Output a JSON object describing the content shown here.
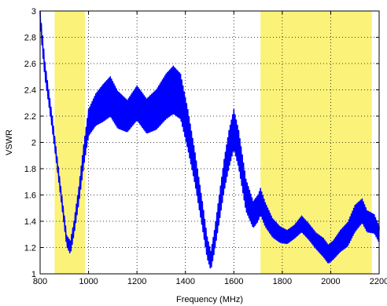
{
  "chart_data": {
    "type": "line",
    "title": "",
    "xlabel": "Frequency (MHz)",
    "ylabel": "VSWR",
    "xlim": [
      800,
      2200
    ],
    "ylim": [
      1,
      3
    ],
    "xticks": [
      "800",
      "1000",
      "1200",
      "1400",
      "1600",
      "1800",
      "2000",
      "2200"
    ],
    "yticks": [
      "1",
      "1.2",
      "1.4",
      "1.6",
      "1.8",
      "2",
      "2.2",
      "2.4",
      "2.6",
      "2.8",
      "3"
    ],
    "grid": true,
    "legend": "none",
    "highlight_bands": [
      {
        "x_range": [
          860,
          985
        ],
        "color": "#fbf27a"
      },
      {
        "x_range": [
          1710,
          2170
        ],
        "color": "#fbf27a"
      }
    ],
    "series": [
      {
        "color": "#0000ff",
        "x": [
          800,
          810,
          820,
          835,
          850,
          870,
          890,
          910,
          925,
          940,
          960,
          980,
          1000,
          1030,
          1060,
          1090,
          1120,
          1160,
          1200,
          1240,
          1280,
          1320,
          1350,
          1380,
          1410,
          1440,
          1470,
          1490,
          1505,
          1520,
          1540,
          1560,
          1580,
          1600,
          1620,
          1650,
          1680,
          1700,
          1710,
          1730,
          1760,
          1790,
          1820,
          1850,
          1880,
          1910,
          1940,
          1970,
          1990,
          2010,
          2040,
          2070,
          2100,
          2130,
          2150,
          2180,
          2200
        ],
        "values": [
          2.95,
          2.75,
          2.55,
          2.35,
          2.15,
          1.85,
          1.55,
          1.25,
          1.2,
          1.35,
          1.6,
          1.9,
          2.15,
          2.25,
          2.3,
          2.35,
          2.25,
          2.2,
          2.3,
          2.2,
          2.25,
          2.35,
          2.4,
          2.35,
          2.1,
          1.8,
          1.45,
          1.2,
          1.1,
          1.25,
          1.5,
          1.75,
          1.95,
          2.1,
          1.95,
          1.6,
          1.45,
          1.5,
          1.55,
          1.45,
          1.35,
          1.3,
          1.28,
          1.32,
          1.38,
          1.32,
          1.25,
          1.2,
          1.15,
          1.18,
          1.25,
          1.3,
          1.42,
          1.48,
          1.4,
          1.38,
          1.3
        ],
        "oscillation_amplitude": [
          0.05,
          0.06,
          0.06,
          0.05,
          0.05,
          0.04,
          0.04,
          0.04,
          0.05,
          0.05,
          0.06,
          0.08,
          0.1,
          0.12,
          0.14,
          0.15,
          0.14,
          0.12,
          0.13,
          0.13,
          0.15,
          0.17,
          0.18,
          0.17,
          0.15,
          0.12,
          0.1,
          0.08,
          0.07,
          0.08,
          0.1,
          0.12,
          0.14,
          0.15,
          0.14,
          0.12,
          0.1,
          0.1,
          0.1,
          0.09,
          0.07,
          0.06,
          0.05,
          0.05,
          0.06,
          0.06,
          0.06,
          0.07,
          0.07,
          0.07,
          0.08,
          0.09,
          0.1,
          0.09,
          0.08,
          0.07,
          0.06
        ]
      }
    ]
  }
}
